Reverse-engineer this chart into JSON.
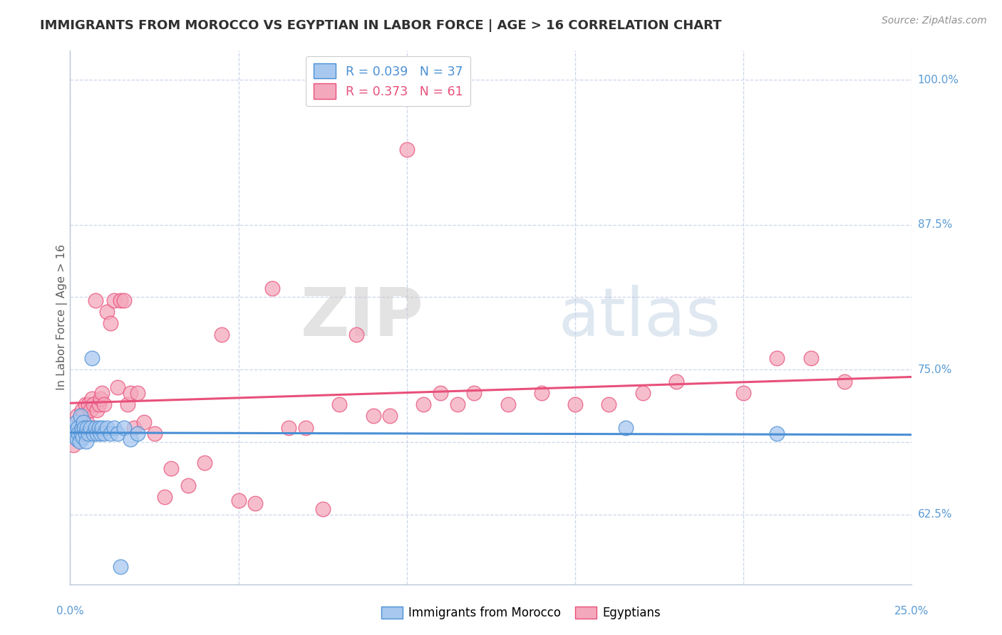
{
  "title": "IMMIGRANTS FROM MOROCCO VS EGYPTIAN IN LABOR FORCE | AGE > 16 CORRELATION CHART",
  "source": "Source: ZipAtlas.com",
  "ylabel": "In Labor Force | Age > 16",
  "watermark_zip": "ZIP",
  "watermark_atlas": "atlas",
  "xmin": 0.0,
  "xmax": 0.25,
  "ymin": 0.565,
  "ymax": 1.025,
  "right_yticks": [
    [
      1.0,
      "100.0%"
    ],
    [
      0.875,
      "87.5%"
    ],
    [
      0.75,
      "75.0%"
    ],
    [
      0.625,
      "62.5%"
    ]
  ],
  "grid_yticks": [
    0.625,
    0.6875,
    0.75,
    0.8125,
    0.875,
    1.0
  ],
  "grid_xticks": [
    0.0,
    0.05,
    0.1,
    0.15,
    0.2,
    0.25
  ],
  "series1_color": "#a8c8ef",
  "series2_color": "#f4a8bc",
  "trendline1_color": "#4a8fd4",
  "trendline2_color": "#e8507a",
  "background_color": "#ffffff",
  "grid_color": "#ccd6e8",
  "title_color": "#303030",
  "axis_label_color": "#5b9bd5",
  "ylabel_color": "#606060",
  "morocco_x": [
    0.001,
    0.0012,
    0.0015,
    0.0018,
    0.002,
    0.0022,
    0.0025,
    0.0028,
    0.003,
    0.0032,
    0.0035,
    0.0038,
    0.004,
    0.0042,
    0.0045,
    0.0048,
    0.005,
    0.0055,
    0.006,
    0.0065,
    0.007,
    0.0075,
    0.008,
    0.0085,
    0.009,
    0.0095,
    0.01,
    0.011,
    0.012,
    0.013,
    0.014,
    0.015,
    0.016,
    0.018,
    0.02,
    0.165,
    0.21
  ],
  "morocco_y": [
    0.7,
    0.695,
    0.692,
    0.705,
    0.69,
    0.7,
    0.695,
    0.688,
    0.71,
    0.695,
    0.7,
    0.692,
    0.705,
    0.7,
    0.695,
    0.688,
    0.7,
    0.695,
    0.7,
    0.76,
    0.695,
    0.7,
    0.695,
    0.7,
    0.695,
    0.7,
    0.695,
    0.7,
    0.695,
    0.7,
    0.695,
    0.58,
    0.7,
    0.69,
    0.695,
    0.7,
    0.695
  ],
  "egypt_x": [
    0.001,
    0.0015,
    0.002,
    0.0025,
    0.003,
    0.0035,
    0.004,
    0.0045,
    0.005,
    0.0055,
    0.006,
    0.0065,
    0.007,
    0.0075,
    0.008,
    0.0085,
    0.009,
    0.0095,
    0.01,
    0.011,
    0.012,
    0.013,
    0.014,
    0.015,
    0.016,
    0.017,
    0.018,
    0.019,
    0.02,
    0.022,
    0.025,
    0.028,
    0.03,
    0.035,
    0.04,
    0.05,
    0.06,
    0.07,
    0.08,
    0.09,
    0.1,
    0.11,
    0.12,
    0.14,
    0.16,
    0.18,
    0.2,
    0.21,
    0.22,
    0.23,
    0.045,
    0.055,
    0.065,
    0.075,
    0.085,
    0.095,
    0.105,
    0.115,
    0.13,
    0.15,
    0.17
  ],
  "egypt_y": [
    0.685,
    0.695,
    0.71,
    0.7,
    0.7,
    0.715,
    0.71,
    0.72,
    0.705,
    0.72,
    0.715,
    0.725,
    0.72,
    0.81,
    0.715,
    0.72,
    0.725,
    0.73,
    0.72,
    0.8,
    0.79,
    0.81,
    0.735,
    0.81,
    0.81,
    0.72,
    0.73,
    0.7,
    0.73,
    0.705,
    0.695,
    0.64,
    0.665,
    0.65,
    0.67,
    0.637,
    0.82,
    0.7,
    0.72,
    0.71,
    0.94,
    0.73,
    0.73,
    0.73,
    0.72,
    0.74,
    0.73,
    0.76,
    0.76,
    0.74,
    0.78,
    0.635,
    0.7,
    0.63,
    0.78,
    0.71,
    0.72,
    0.72,
    0.72,
    0.72,
    0.73
  ],
  "legend1_r": "R = 0.039",
  "legend1_n": "N = 37",
  "legend2_r": "R = 0.373",
  "legend2_n": "N = 61",
  "legend_label1": "Immigrants from Morocco",
  "legend_label2": "Egyptians"
}
